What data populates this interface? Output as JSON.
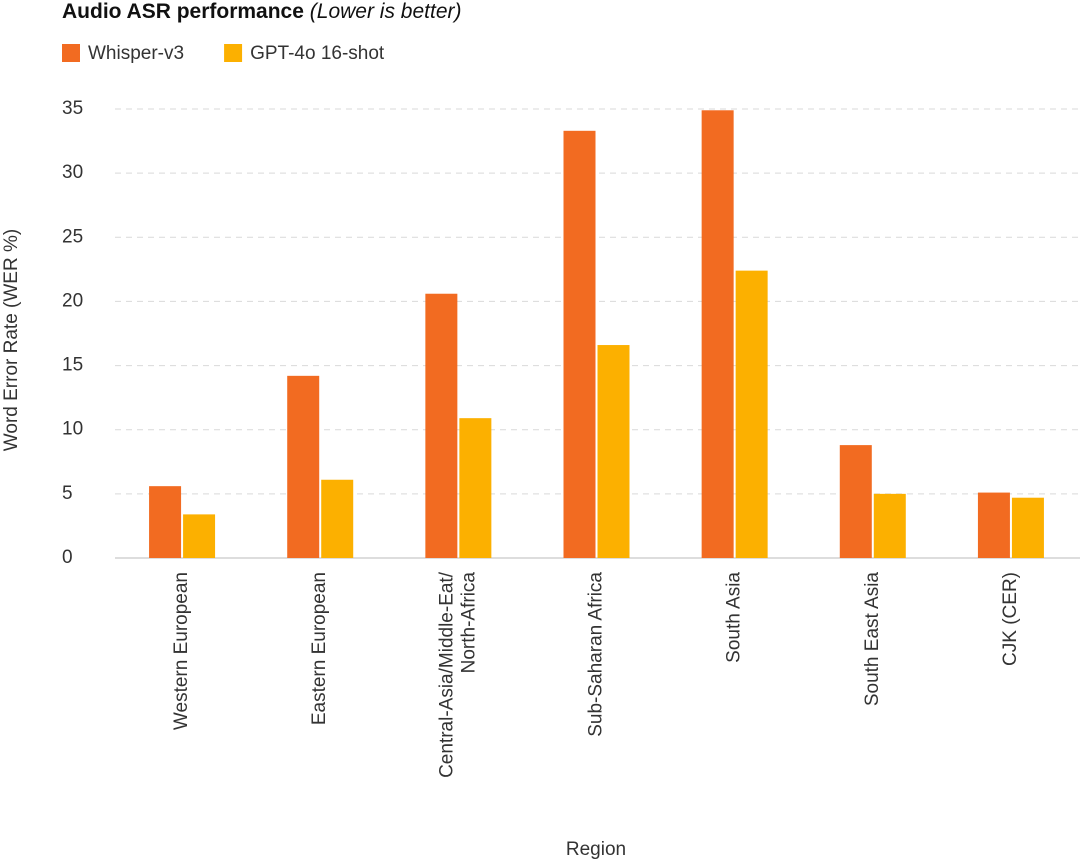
{
  "chart_data": {
    "type": "bar",
    "title": "Audio ASR performance",
    "subtitle": "(Lower is better)",
    "x_label": "Region",
    "y_label": "Word Error Rate (WER %)",
    "categories": [
      "Western European",
      "Eastern European",
      "Central-Asia/Middle-Eat/\nNorth-Africa",
      "Sub-Saharan Africa",
      "South Asia",
      "South East Asia",
      "CJK (CER)"
    ],
    "series": [
      {
        "name": "Whisper-v3",
        "color": "#f26b21",
        "values": [
          5.6,
          14.2,
          20.6,
          33.3,
          34.9,
          8.8,
          5.1
        ]
      },
      {
        "name": "GPT-4o 16-shot",
        "color": "#fcb000",
        "values": [
          3.4,
          6.1,
          10.9,
          16.6,
          22.4,
          5.0,
          4.7
        ]
      }
    ],
    "ylim": [
      0,
      35
    ],
    "yticks": [
      0,
      5,
      10,
      15,
      20,
      25,
      30,
      35
    ],
    "grid": true
  }
}
